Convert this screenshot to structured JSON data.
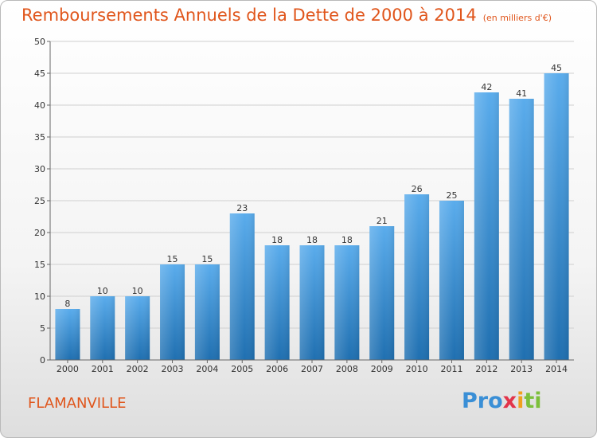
{
  "title": "Remboursements Annuels de la Dette de 2000 à 2014",
  "unit": "(en milliers d'€)",
  "commune": "FLAMANVILLE",
  "logo": {
    "parts": [
      "Pro",
      "x",
      "i",
      "ti"
    ]
  },
  "colors": {
    "title": "#e0551b",
    "bar_top": "#5aacec",
    "bar_bottom": "#1f6fb0",
    "grid": "#cfcfcf"
  },
  "chart_data": {
    "type": "bar",
    "title": "Remboursements Annuels de la Dette de 2000 à 2014",
    "subtitle": "(en milliers d'€)",
    "categories": [
      "2000",
      "2001",
      "2002",
      "2003",
      "2004",
      "2005",
      "2006",
      "2007",
      "2008",
      "2009",
      "2010",
      "2011",
      "2012",
      "2013",
      "2014"
    ],
    "values": [
      8,
      10,
      10,
      15,
      15,
      23,
      18,
      18,
      18,
      21,
      26,
      25,
      42,
      41,
      45
    ],
    "ylim": [
      0,
      50
    ],
    "yticks": [
      0,
      5,
      10,
      15,
      20,
      25,
      30,
      35,
      40,
      45,
      50
    ],
    "grid": true,
    "data_labels": true
  }
}
